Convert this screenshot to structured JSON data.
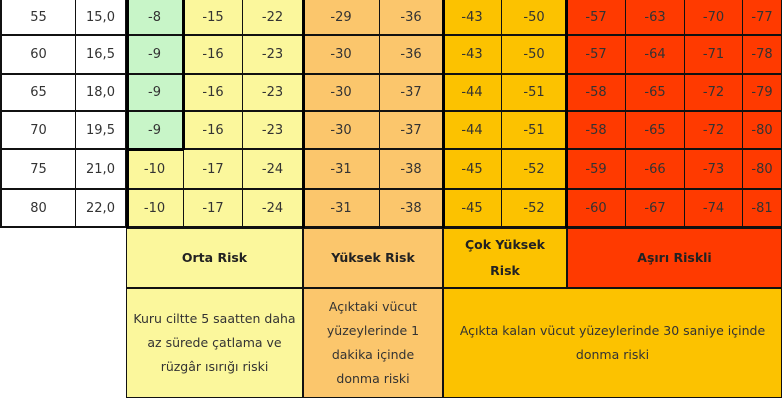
{
  "colors": {
    "green": "#c8f5c8",
    "yellow": "#fbf79c",
    "light_orange": "#fbc66c",
    "gold": "#fcc200",
    "red": "#ff3a00",
    "white": "#ffffff"
  },
  "table": {
    "rows": [
      [
        "55",
        "15,0",
        "-8",
        "-15",
        "-22",
        "-29",
        "-36",
        "-43",
        "-50",
        "-57",
        "-63",
        "-70",
        "-77"
      ],
      [
        "60",
        "16,5",
        "-9",
        "-16",
        "-23",
        "-30",
        "-36",
        "-43",
        "-50",
        "-57",
        "-64",
        "-71",
        "-78"
      ],
      [
        "65",
        "18,0",
        "-9",
        "-16",
        "-23",
        "-30",
        "-37",
        "-44",
        "-51",
        "-58",
        "-65",
        "-72",
        "-79"
      ],
      [
        "70",
        "19,5",
        "-9",
        "-16",
        "-23",
        "-30",
        "-37",
        "-44",
        "-51",
        "-58",
        "-65",
        "-72",
        "-80"
      ],
      [
        "75",
        "21,0",
        "-10",
        "-17",
        "-24",
        "-31",
        "-38",
        "-45",
        "-52",
        "-59",
        "-66",
        "-73",
        "-80"
      ],
      [
        "80",
        "22,0",
        "-10",
        "-17",
        "-24",
        "-31",
        "-38",
        "-45",
        "-52",
        "-60",
        "-67",
        "-74",
        "-81"
      ]
    ]
  },
  "legend": {
    "orta_risk": "Orta Risk",
    "yuksek_risk": "Yüksek Risk",
    "cok_yuksek_risk": "Çok Yüksek Risk",
    "asiri_riskli": "Aşırı Riskli",
    "orta_desc": "Kuru ciltte 5 saatten daha az sürede çatlama ve rüzgâr ısırığı riski",
    "yuksek_desc": "Açıktaki vücut yüzeylerinde 1 dakika içinde donma riski",
    "asiri_desc": "Açıkta kalan vücut yüzeylerinde 30 saniye içinde donma riski"
  }
}
